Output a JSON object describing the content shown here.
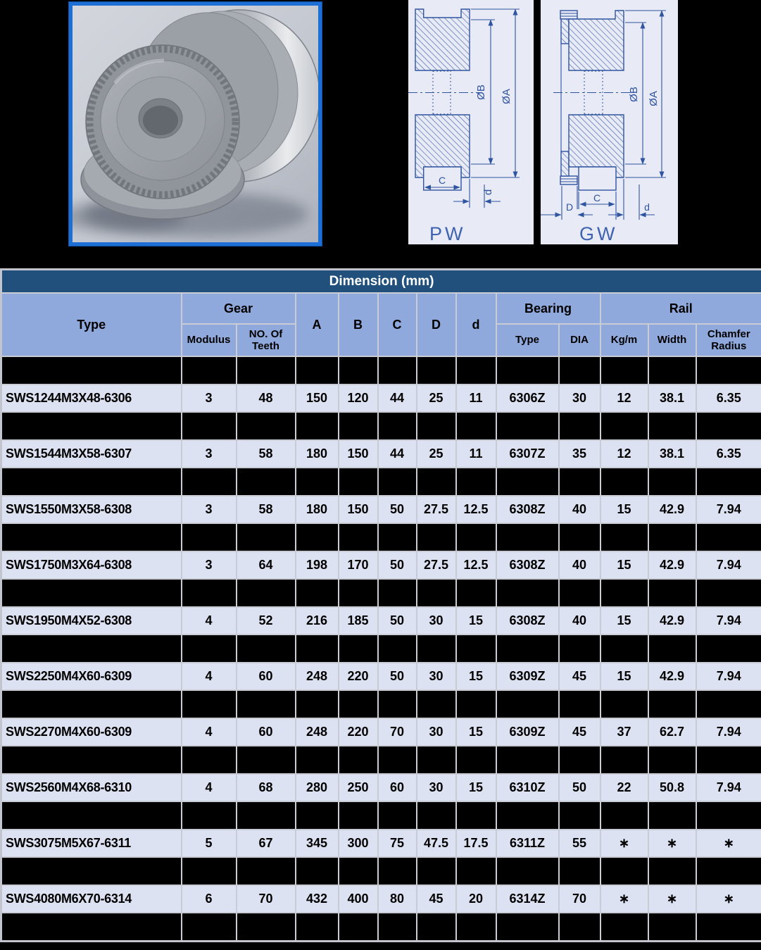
{
  "page": {
    "background": "#000000",
    "colors": {
      "title_bar": "#20507B",
      "header_fill": "#8FA9DC",
      "data_row_fill": "#DDE2F2",
      "separator_fill": "#000000",
      "grid_line": "#C9CCD4",
      "photo_frame_blue": "#1D6FD6",
      "drawing_line_blue": "#2F54A0",
      "drawing_background": "#E8EAF5"
    }
  },
  "drawings": {
    "pw": {
      "caption": "PW",
      "dia_outer": "ØA",
      "dia_inner": "ØB",
      "hub_width": "C",
      "bore": "d"
    },
    "gw": {
      "caption": "GW",
      "dia_outer": "ØA",
      "dia_inner": "ØB",
      "hub_width": "C",
      "gear_width": "D",
      "bore": "d"
    }
  },
  "table": {
    "title": "Dimension (mm)",
    "headers": {
      "type": "Type",
      "gear_group": "Gear",
      "modulus": "Modulus",
      "teeth": "NO. Of Teeth",
      "a": "A",
      "b": "B",
      "c": "C",
      "d_upper": "D",
      "d_lower": "d",
      "bearing_group": "Bearing",
      "bearing_type": "Type",
      "bearing_dia": "DIA",
      "rail_group": "Rail",
      "kgm": "Kg/m",
      "width": "Width",
      "chamfer": "Chamfer Radius"
    },
    "rows": [
      {
        "type": "SWS1244M3X48-6306",
        "modulus": "3",
        "teeth": "48",
        "a": "150",
        "b": "120",
        "c": "44",
        "d_upper": "25",
        "d_lower": "11",
        "bearing_type": "6306Z",
        "bearing_dia": "30",
        "kgm": "12",
        "width": "38.1",
        "chamfer": "6.35"
      },
      {
        "type": "SWS1544M3X58-6307",
        "modulus": "3",
        "teeth": "58",
        "a": "180",
        "b": "150",
        "c": "44",
        "d_upper": "25",
        "d_lower": "11",
        "bearing_type": "6307Z",
        "bearing_dia": "35",
        "kgm": "12",
        "width": "38.1",
        "chamfer": "6.35"
      },
      {
        "type": "SWS1550M3X58-6308",
        "modulus": "3",
        "teeth": "58",
        "a": "180",
        "b": "150",
        "c": "50",
        "d_upper": "27.5",
        "d_lower": "12.5",
        "bearing_type": "6308Z",
        "bearing_dia": "40",
        "kgm": "15",
        "width": "42.9",
        "chamfer": "7.94"
      },
      {
        "type": "SWS1750M3X64-6308",
        "modulus": "3",
        "teeth": "64",
        "a": "198",
        "b": "170",
        "c": "50",
        "d_upper": "27.5",
        "d_lower": "12.5",
        "bearing_type": "6308Z",
        "bearing_dia": "40",
        "kgm": "15",
        "width": "42.9",
        "chamfer": "7.94"
      },
      {
        "type": "SWS1950M4X52-6308",
        "modulus": "4",
        "teeth": "52",
        "a": "216",
        "b": "185",
        "c": "50",
        "d_upper": "30",
        "d_lower": "15",
        "bearing_type": "6308Z",
        "bearing_dia": "40",
        "kgm": "15",
        "width": "42.9",
        "chamfer": "7.94"
      },
      {
        "type": "SWS2250M4X60-6309",
        "modulus": "4",
        "teeth": "60",
        "a": "248",
        "b": "220",
        "c": "50",
        "d_upper": "30",
        "d_lower": "15",
        "bearing_type": "6309Z",
        "bearing_dia": "45",
        "kgm": "15",
        "width": "42.9",
        "chamfer": "7.94"
      },
      {
        "type": "SWS2270M4X60-6309",
        "modulus": "4",
        "teeth": "60",
        "a": "248",
        "b": "220",
        "c": "70",
        "d_upper": "30",
        "d_lower": "15",
        "bearing_type": "6309Z",
        "bearing_dia": "45",
        "kgm": "37",
        "width": "62.7",
        "chamfer": "7.94"
      },
      {
        "type": "SWS2560M4X68-6310",
        "modulus": "4",
        "teeth": "68",
        "a": "280",
        "b": "250",
        "c": "60",
        "d_upper": "30",
        "d_lower": "15",
        "bearing_type": "6310Z",
        "bearing_dia": "50",
        "kgm": "22",
        "width": "50.8",
        "chamfer": "7.94"
      },
      {
        "type": "SWS3075M5X67-6311",
        "modulus": "5",
        "teeth": "67",
        "a": "345",
        "b": "300",
        "c": "75",
        "d_upper": "47.5",
        "d_lower": "17.5",
        "bearing_type": "6311Z",
        "bearing_dia": "55",
        "kgm": "∗",
        "width": "∗",
        "chamfer": "∗"
      },
      {
        "type": "SWS4080M6X70-6314",
        "modulus": "6",
        "teeth": "70",
        "a": "432",
        "b": "400",
        "c": "80",
        "d_upper": "45",
        "d_lower": "20",
        "bearing_type": "6314Z",
        "bearing_dia": "70",
        "kgm": "∗",
        "width": "∗",
        "chamfer": "∗"
      }
    ]
  }
}
